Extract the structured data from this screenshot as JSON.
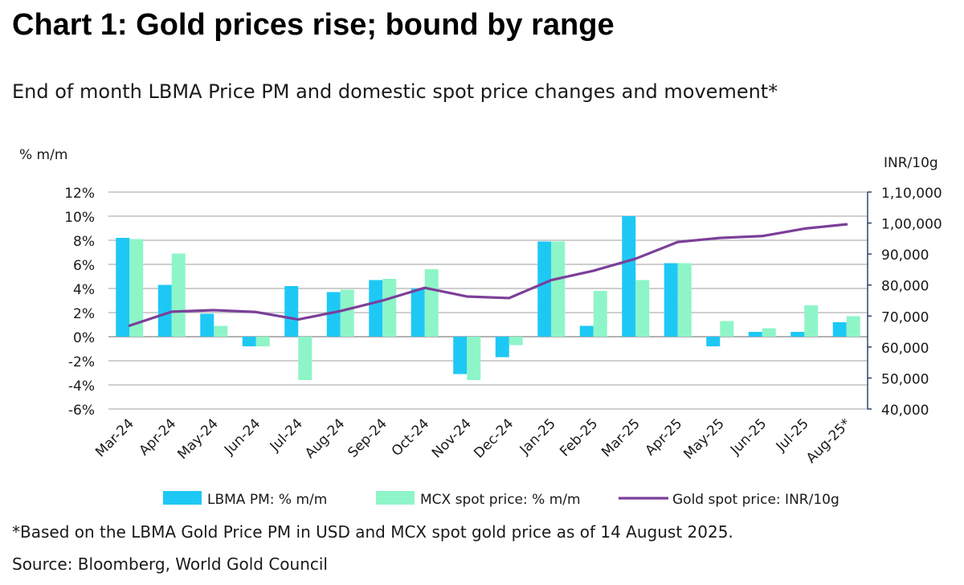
{
  "title": "Chart 1: Gold prices rise; bound by range",
  "subtitle": "End of month LBMA Price PM and domestic spot price changes and movement*",
  "footnote": "*Based on the LBMA Gold Price PM in USD and MCX spot gold price as of 14 August 2025.",
  "source": "Source: Bloomberg, World Gold Council",
  "chart_data": {
    "type": "bar",
    "categories": [
      "Mar-24",
      "Apr-24",
      "May-24",
      "Jun-24",
      "Jul-24",
      "Aug-24",
      "Sep-24",
      "Oct-24",
      "Nov-24",
      "Dec-24",
      "Jan-25",
      "Feb-25",
      "Mar-25",
      "Apr-25",
      "May-25",
      "Jun-25",
      "Jul-25",
      "Aug-25*"
    ],
    "left_axis": {
      "label": "% m/m",
      "ylim": [
        -6,
        12
      ],
      "ticks": [
        12,
        10,
        8,
        6,
        4,
        2,
        0,
        -2,
        -4,
        -6
      ],
      "tick_labels": [
        "12%",
        "10%",
        "8%",
        "6%",
        "4%",
        "2%",
        "0%",
        "-2%",
        "-4%",
        "-6%"
      ]
    },
    "right_axis": {
      "label": "INR/10g",
      "ylim": [
        40000,
        110000
      ],
      "ticks": [
        110000,
        100000,
        90000,
        80000,
        70000,
        60000,
        50000,
        40000
      ],
      "tick_labels": [
        "1,10,000",
        "1,00,000",
        "90,000",
        "80,000",
        "70,000",
        "60,000",
        "50,000",
        "40,000"
      ]
    },
    "series": [
      {
        "name": "LBMA PM: % m/m",
        "kind": "bar",
        "axis": "left",
        "color": "#1ec8f5",
        "values": [
          8.2,
          4.3,
          1.9,
          -0.8,
          4.2,
          3.7,
          4.7,
          4.0,
          -3.1,
          -1.7,
          7.9,
          0.9,
          10.0,
          6.1,
          -0.8,
          0.4,
          0.4,
          1.2
        ]
      },
      {
        "name": "MCX spot price: % m/m",
        "kind": "bar",
        "axis": "left",
        "color": "#8ef5c8",
        "values": [
          8.1,
          6.9,
          0.9,
          -0.8,
          -3.6,
          3.9,
          4.8,
          5.6,
          -3.6,
          -0.7,
          7.9,
          3.8,
          4.7,
          6.1,
          1.3,
          0.7,
          2.6,
          1.7
        ]
      },
      {
        "name": "Gold spot price: INR/10g",
        "kind": "line",
        "axis": "right",
        "color": "#7b3f98",
        "values": [
          66900,
          71400,
          71900,
          71300,
          68900,
          71600,
          75000,
          79100,
          76300,
          75800,
          81600,
          84600,
          88500,
          93900,
          95200,
          95800,
          98200,
          99600
        ]
      }
    ],
    "grid": true,
    "legend": "bottom"
  }
}
